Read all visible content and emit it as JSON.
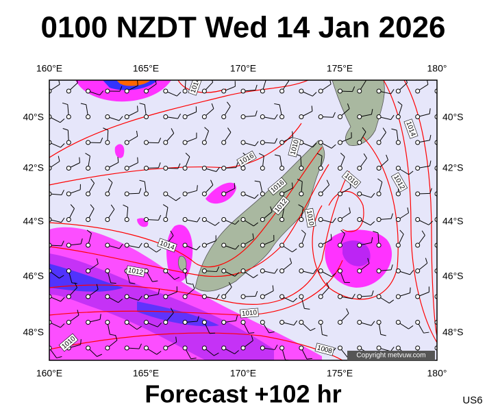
{
  "title": "0100 NZDT Wed 14 Jan 2026",
  "footer": "Forecast +102 hr",
  "region": "US6",
  "copyright": "Copyright metvuw.com",
  "longitudes": [
    "160°E",
    "165°E",
    "170°E",
    "175°E",
    "180°"
  ],
  "latitudes": [
    "40°S",
    "42°S",
    "44°S",
    "46°S",
    "48°S"
  ],
  "isobar_labels": [
    "1014",
    "1016",
    "1010",
    "1016",
    "1012",
    "1010",
    "1012",
    "1010",
    "1014",
    "1014",
    "1012",
    "1010",
    "1010",
    "1008"
  ]
}
